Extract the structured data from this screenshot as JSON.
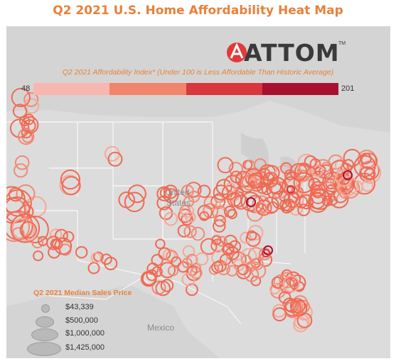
{
  "title": "Q2 2021 U.S. Home Affordability Heat Map",
  "logo": {
    "text": "ATTOM",
    "trademark": "TM"
  },
  "color_scale": {
    "title": "Q2 2021 Affordability Index* (Under 100 is Less Affordable Than Historic Average)",
    "min_label": "48",
    "max_label": "201",
    "colors": [
      "#f8b7ae",
      "#f2846b",
      "#d9363e",
      "#a81030"
    ]
  },
  "size_legend": {
    "title": "Q2 2021 Median Sales Price",
    "items": [
      {
        "label": "$43,339"
      },
      {
        "label": "$500,000"
      },
      {
        "label": "$1,000,000"
      },
      {
        "label": "$1,425,000"
      }
    ]
  },
  "place_labels": {
    "united_line1": "United",
    "united_line2": "States",
    "mexico": "Mexico"
  },
  "colors": {
    "accent": "#e8813a",
    "map_background": "#dcdcdc",
    "land": "#cfcfcf",
    "border": "#ffffff",
    "marker": "#ee6a52"
  }
}
